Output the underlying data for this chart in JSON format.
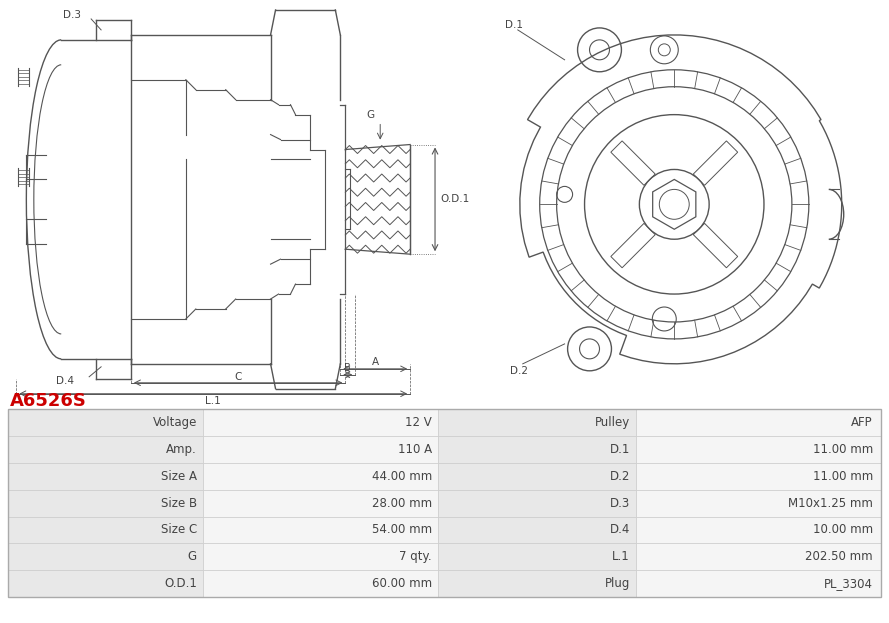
{
  "title": "A6526S",
  "title_color": "#cc0000",
  "bg_color": "#ffffff",
  "table_rows": [
    [
      "Voltage",
      "12 V",
      "Pulley",
      "AFP"
    ],
    [
      "Amp.",
      "110 A",
      "D.1",
      "11.00 mm"
    ],
    [
      "Size A",
      "44.00 mm",
      "D.2",
      "11.00 mm"
    ],
    [
      "Size B",
      "28.00 mm",
      "D.3",
      "M10x1.25 mm"
    ],
    [
      "Size C",
      "54.00 mm",
      "D.4",
      "10.00 mm"
    ],
    [
      "G",
      "7 qty.",
      "L.1",
      "202.50 mm"
    ],
    [
      "O.D.1",
      "60.00 mm",
      "Plug",
      "PL_3304"
    ]
  ],
  "text_color": "#444444",
  "line_color": "#555555",
  "row_bg_label": "#e8e8e8",
  "row_bg_value": "#f5f5f5",
  "table_border": "#cccccc"
}
